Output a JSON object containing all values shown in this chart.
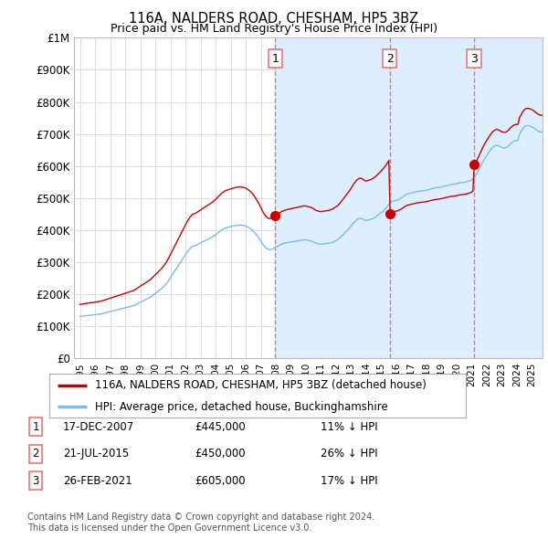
{
  "title": "116A, NALDERS ROAD, CHESHAM, HP5 3BZ",
  "subtitle": "Price paid vs. HM Land Registry's House Price Index (HPI)",
  "hpi_label": "HPI: Average price, detached house, Buckinghamshire",
  "property_label": "116A, NALDERS ROAD, CHESHAM, HP5 3BZ (detached house)",
  "ylabel_ticks": [
    "£0",
    "£100K",
    "£200K",
    "£300K",
    "£400K",
    "£500K",
    "£600K",
    "£700K",
    "£800K",
    "£900K",
    "£1M"
  ],
  "ytick_values": [
    0,
    100000,
    200000,
    300000,
    400000,
    500000,
    600000,
    700000,
    800000,
    900000,
    1000000
  ],
  "xlim_start": 1994.6,
  "xlim_end": 2025.7,
  "ylim_min": 0,
  "ylim_max": 1000000,
  "transactions": [
    {
      "num": 1,
      "date": "17-DEC-2007",
      "price": 445000,
      "pct": "11%",
      "dir": "↓",
      "year": 2007.96
    },
    {
      "num": 2,
      "date": "21-JUL-2015",
      "price": 450000,
      "pct": "26%",
      "dir": "↓",
      "year": 2015.55
    },
    {
      "num": 3,
      "date": "26-FEB-2021",
      "price": 605000,
      "pct": "17%",
      "dir": "↓",
      "year": 2021.15
    }
  ],
  "hpi_color": "#7bbce8",
  "property_color": "#cc0000",
  "vline_color": "#e87878",
  "shade_color": "#ddeeff",
  "point_color": "#cc0000",
  "background_color": "#ffffff",
  "grid_color": "#dddddd",
  "hpi_data_monthly": {
    "start_year": 1995,
    "start_month": 1,
    "values": [
      131000,
      131500,
      132000,
      132500,
      133000,
      133500,
      134000,
      134500,
      135000,
      135200,
      135500,
      136000,
      136500,
      137000,
      137500,
      138000,
      138500,
      139000,
      140000,
      141000,
      142000,
      143000,
      144000,
      145000,
      146000,
      147000,
      148000,
      149000,
      150000,
      151000,
      152000,
      153000,
      154000,
      155000,
      156000,
      157000,
      158000,
      159000,
      160000,
      161000,
      162000,
      163000,
      164000,
      165000,
      167000,
      169000,
      171000,
      173000,
      175000,
      177000,
      179000,
      181000,
      183000,
      185000,
      187000,
      189000,
      191000,
      194000,
      197000,
      200000,
      203000,
      206000,
      209000,
      212000,
      215000,
      218000,
      222000,
      226000,
      230000,
      235000,
      240000,
      246000,
      252000,
      258000,
      264000,
      270000,
      276000,
      282000,
      288000,
      294000,
      300000,
      306000,
      312000,
      318000,
      324000,
      330000,
      335000,
      340000,
      344000,
      348000,
      350000,
      351000,
      352000,
      354000,
      356000,
      358000,
      360000,
      362000,
      364000,
      366000,
      368000,
      370000,
      372000,
      374000,
      376000,
      378000,
      380000,
      383000,
      386000,
      389000,
      392000,
      395000,
      398000,
      401000,
      403000,
      405000,
      407000,
      408000,
      409000,
      410000,
      411000,
      412000,
      413000,
      414000,
      414500,
      415000,
      415500,
      416000,
      416000,
      415500,
      415000,
      414000,
      413000,
      411000,
      409000,
      407000,
      404000,
      401000,
      397000,
      393000,
      388000,
      383000,
      378000,
      372000,
      366000,
      360000,
      354000,
      349000,
      345000,
      342000,
      340000,
      339000,
      340000,
      341000,
      343000,
      345000,
      347000,
      349000,
      351000,
      353000,
      355000,
      357000,
      358000,
      359000,
      360000,
      361000,
      362000,
      362500,
      363000,
      364000,
      364500,
      365000,
      365500,
      366000,
      367000,
      368000,
      368500,
      369000,
      369500,
      370000,
      369500,
      369000,
      368000,
      367000,
      366000,
      365000,
      363000,
      361000,
      359000,
      358000,
      357000,
      356500,
      356000,
      356500,
      357000,
      357500,
      358000,
      358500,
      359000,
      360000,
      361000,
      362000,
      364000,
      366000,
      368000,
      370000,
      373000,
      376000,
      380000,
      384000,
      388000,
      392000,
      396000,
      400000,
      404000,
      408000,
      413000,
      418000,
      423000,
      427000,
      431000,
      434000,
      436000,
      437000,
      436500,
      435000,
      433000,
      431000,
      430000,
      431000,
      432000,
      433000,
      434000,
      436000,
      438000,
      440000,
      443000,
      446000,
      449000,
      452000,
      455000,
      458000,
      462000,
      466000,
      470000,
      475000,
      480000,
      485000,
      488000,
      490000,
      491000,
      492000,
      493000,
      494000,
      496000,
      498000,
      500000,
      503000,
      506000,
      509000,
      511000,
      513000,
      514000,
      515000,
      516000,
      517000,
      518000,
      519000,
      520000,
      521000,
      521500,
      522000,
      522500,
      523000,
      523500,
      524000,
      525000,
      526000,
      527000,
      528000,
      529000,
      530000,
      531000,
      532000,
      532500,
      533000,
      533500,
      534000,
      535000,
      536000,
      537000,
      538000,
      539000,
      540000,
      541000,
      542000,
      542500,
      543000,
      543500,
      544000,
      545000,
      546000,
      547000,
      547500,
      548000,
      548500,
      549000,
      550000,
      551000,
      552000,
      553000,
      555000,
      557000,
      560000,
      564000,
      569000,
      575000,
      582000,
      590000,
      598000,
      606000,
      614000,
      621000,
      627000,
      633000,
      639000,
      645000,
      650000,
      655000,
      659000,
      662000,
      664000,
      665000,
      664000,
      662000,
      660000,
      658000,
      657000,
      656000,
      657000,
      659000,
      662000,
      666000,
      670000,
      673000,
      676000,
      678000,
      679000,
      679500,
      680000,
      699000,
      705000,
      712000,
      718000,
      722000,
      725000,
      726000,
      726000,
      725000,
      724000,
      722000,
      720000,
      717000,
      714000,
      711000,
      709000,
      707000,
      706000,
      706000,
      707000,
      709000,
      712000,
      715000,
      718000,
      721000,
      724000,
      727000,
      730000,
      733000,
      736000
    ]
  },
  "footnote": "Contains HM Land Registry data © Crown copyright and database right 2024.\nThis data is licensed under the Open Government Licence v3.0."
}
